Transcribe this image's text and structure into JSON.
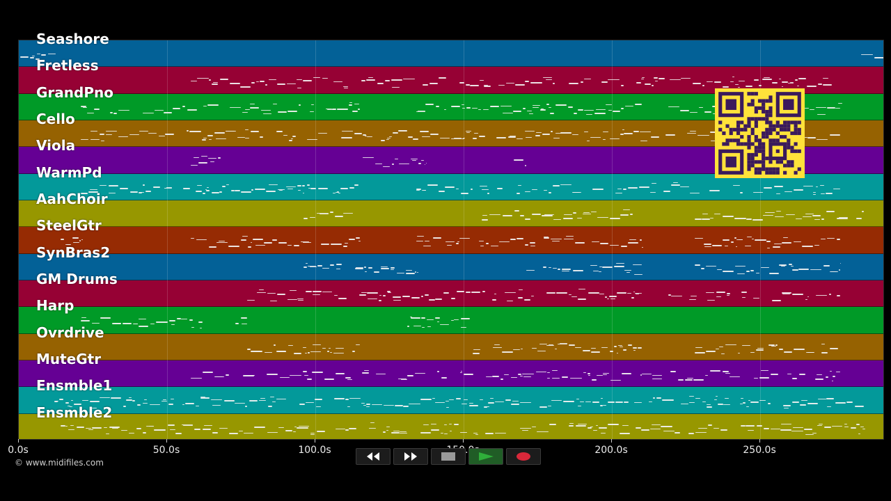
{
  "tracks": [
    {
      "name": "Seashore",
      "color": "#036197"
    },
    {
      "name": "Fretless",
      "color": "#960134"
    },
    {
      "name": "GrandPno",
      "color": "#009a27"
    },
    {
      "name": "Cello",
      "color": "#966201"
    },
    {
      "name": "Viola",
      "color": "#650094"
    },
    {
      "name": "WarmPd",
      "color": "#03999a"
    },
    {
      "name": "AahChoir",
      "color": "#979700"
    },
    {
      "name": "SteelGtr",
      "color": "#962b03"
    },
    {
      "name": "SynBras2",
      "color": "#036197"
    },
    {
      "name": "GM Drums",
      "color": "#960134"
    },
    {
      "name": "Harp",
      "color": "#009a27"
    },
    {
      "name": "Ovrdrive",
      "color": "#966201"
    },
    {
      "name": "MuteGtr",
      "color": "#650094"
    },
    {
      "name": "Ensmble1",
      "color": "#03999a"
    },
    {
      "name": "Ensmble2",
      "color": "#979700"
    }
  ],
  "time_axis": {
    "ticks": [
      "0.0s",
      "50.0s",
      "100.0s",
      "150.0s",
      "200.0s",
      "250.0s"
    ],
    "tick_values": [
      0,
      50,
      100,
      150,
      200,
      250
    ],
    "range": [
      0,
      292
    ]
  },
  "transport": {
    "buttons": [
      {
        "name": "rewind",
        "icon": "rewind-icon"
      },
      {
        "name": "fast-forward",
        "icon": "fast-forward-icon"
      },
      {
        "name": "stop",
        "icon": "stop-icon"
      },
      {
        "name": "play",
        "icon": "play-icon",
        "color": "#2fae3a"
      },
      {
        "name": "record",
        "icon": "record-icon",
        "color": "#d9283a"
      }
    ]
  },
  "overlay": {
    "icon": "qr-code-icon",
    "color": "#ffe23a"
  },
  "copyright": "© www.midifiles.com",
  "note_activity": [
    [
      [
        0.5,
        12.5
      ],
      [
        284,
        292
      ]
    ],
    [
      [
        58,
        276
      ]
    ],
    [
      [
        21,
        115
      ],
      [
        134,
        210
      ],
      [
        219,
        277
      ]
    ],
    [
      [
        21,
        277
      ]
    ],
    [
      [
        58,
        68
      ],
      [
        116,
        137
      ],
      [
        167,
        171
      ]
    ],
    [
      [
        21,
        115
      ],
      [
        134,
        277
      ]
    ],
    [
      [
        96,
        113
      ],
      [
        156,
        207
      ],
      [
        228,
        285
      ]
    ],
    [
      [
        14,
        21
      ],
      [
        58,
        115
      ],
      [
        134,
        210
      ],
      [
        228,
        277
      ]
    ],
    [
      [
        96,
        134
      ],
      [
        171,
        210
      ],
      [
        228,
        277
      ]
    ],
    [
      [
        77,
        210
      ],
      [
        219,
        277
      ]
    ],
    [
      [
        21,
        62
      ],
      [
        73,
        77
      ],
      [
        131,
        152
      ]
    ],
    [
      [
        77,
        115
      ],
      [
        153,
        210
      ],
      [
        228,
        277
      ]
    ],
    [
      [
        58,
        210
      ],
      [
        210,
        277
      ]
    ],
    [
      [
        12,
        285
      ]
    ],
    [
      [
        14,
        285
      ]
    ]
  ]
}
